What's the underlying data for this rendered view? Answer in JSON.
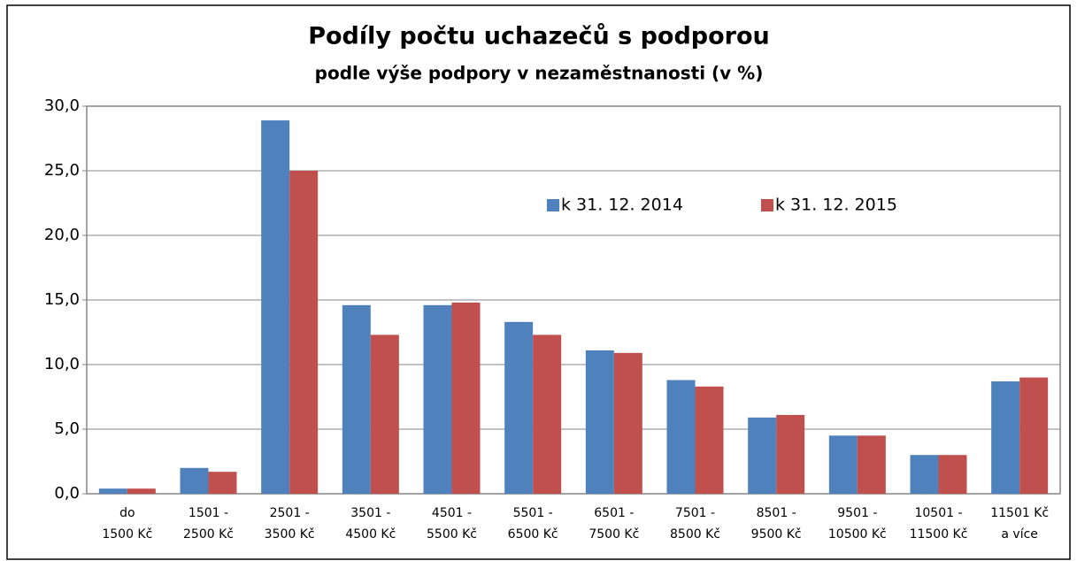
{
  "chart_data": {
    "type": "bar",
    "title": "Podíly počtu uchazečů s podporou",
    "subtitle": "podle výše podpory v nezaměstnanosti (v %)",
    "categories": [
      [
        "do",
        "1500 Kč"
      ],
      [
        "1501 -",
        "2500 Kč"
      ],
      [
        "2501 -",
        "3500 Kč"
      ],
      [
        "3501 -",
        "4500 Kč"
      ],
      [
        "4501 -",
        "5500 Kč"
      ],
      [
        "5501 -",
        "6500 Kč"
      ],
      [
        "6501 -",
        "7500 Kč"
      ],
      [
        "7501 -",
        "8500 Kč"
      ],
      [
        "8501 -",
        "9500 Kč"
      ],
      [
        "9501 -",
        "10500 Kč"
      ],
      [
        "10501 -",
        "11500 Kč"
      ],
      [
        "11501 Kč",
        "a více"
      ]
    ],
    "series": [
      {
        "name": "k 31. 12. 2014",
        "color": "#4f81bd",
        "values": [
          0.4,
          2.0,
          28.9,
          14.6,
          14.6,
          13.3,
          11.1,
          8.8,
          5.9,
          4.5,
          3.0,
          8.7
        ]
      },
      {
        "name": "k 31. 12. 2015",
        "color": "#c0504d",
        "values": [
          0.4,
          1.7,
          25.0,
          12.3,
          14.8,
          12.3,
          10.9,
          8.3,
          6.1,
          4.5,
          3.0,
          9.0
        ]
      }
    ],
    "ylim": [
      0,
      30
    ],
    "yticks": [
      {
        "value": 0,
        "label": "0,0"
      },
      {
        "value": 5,
        "label": "5,0"
      },
      {
        "value": 10,
        "label": "10,0"
      },
      {
        "value": 15,
        "label": "15,0"
      },
      {
        "value": 20,
        "label": "20,0"
      },
      {
        "value": 25,
        "label": "25,0"
      },
      {
        "value": 30,
        "label": "30,0"
      }
    ],
    "grid": true,
    "legend": "top-right"
  }
}
